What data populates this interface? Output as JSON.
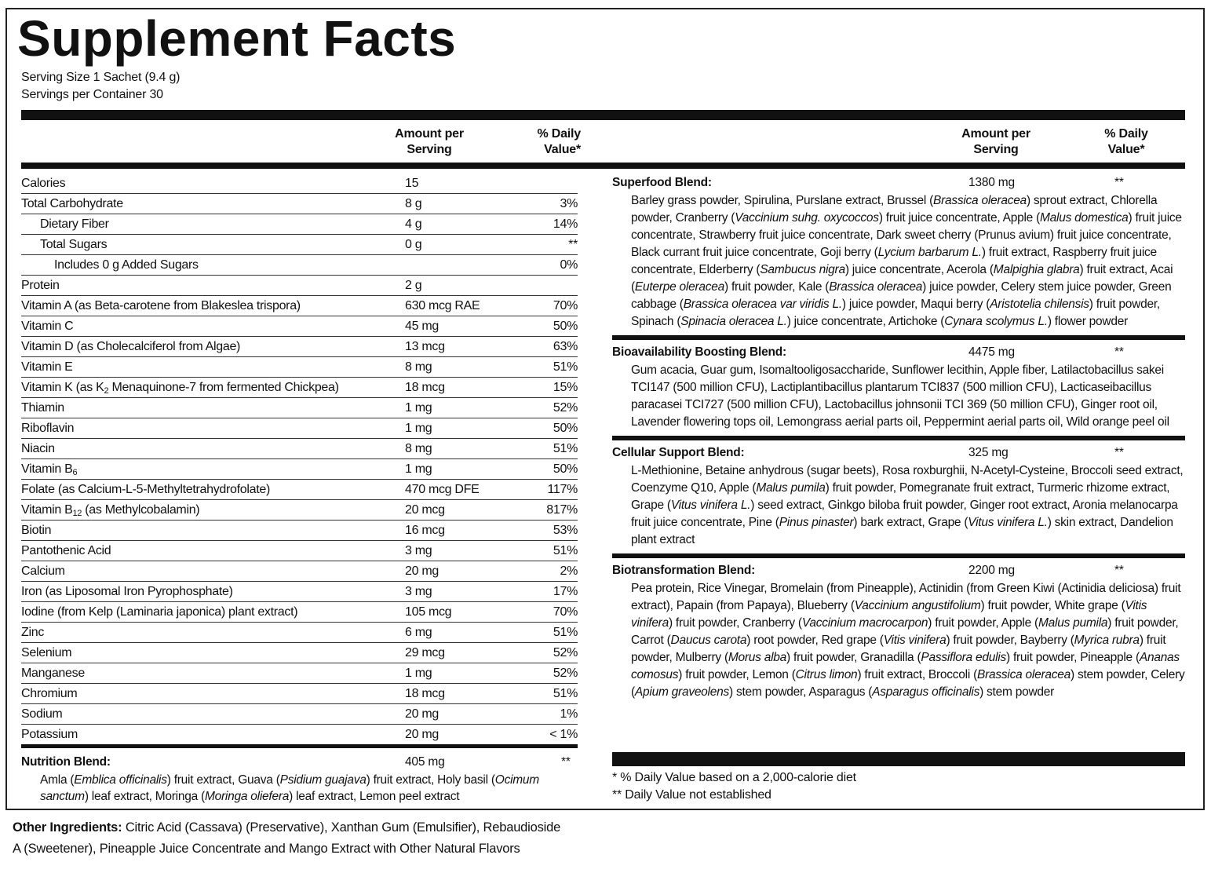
{
  "title": "Supplement Facts",
  "serving_size": "Serving Size 1 Sachet (9.4 g)",
  "servings_per_container": "Servings per Container 30",
  "column_headers": {
    "amount": "Amount per Serving",
    "daily_value": "% Daily Value*"
  },
  "nutrients": [
    {
      "name": "Calories",
      "amount": "15",
      "indent": 0
    },
    {
      "name": "Total Carbohydrate",
      "amount": "8 g",
      "dv": "3%",
      "indent": 0
    },
    {
      "name": "Dietary Fiber",
      "amount": "4 g",
      "dv": "14%",
      "indent": 1
    },
    {
      "name": "Total Sugars",
      "amount": "0 g",
      "dv": "**",
      "indent": 1
    },
    {
      "name": "Includes 0 g Added Sugars",
      "dv": "0%",
      "indent": 2
    },
    {
      "name": "Protein",
      "amount": "2 g",
      "indent": 0
    },
    {
      "name": "Vitamin A (as Beta-carotene from Blakeslea trispora)",
      "amount": "630 mcg RAE",
      "dv": "70%",
      "indent": 0
    },
    {
      "name": "Vitamin C",
      "amount": "45 mg",
      "dv": "50%",
      "indent": 0
    },
    {
      "name": "Vitamin D (as Cholecalciferol from Algae)",
      "amount": "13 mcg",
      "dv": "63%",
      "indent": 0
    },
    {
      "name": "Vitamin E",
      "amount": "8 mg",
      "dv": "51%",
      "indent": 0
    },
    {
      "name": [
        "Vitamin K (as K",
        {
          "text": "2",
          "sub": true
        },
        " Menaquinone-7 from fermented Chickpea)"
      ],
      "amount": "18 mcg",
      "dv": "15%",
      "indent": 0
    },
    {
      "name": "Thiamin",
      "amount": "1 mg",
      "dv": "52%",
      "indent": 0
    },
    {
      "name": "Riboflavin",
      "amount": "1 mg",
      "dv": "50%",
      "indent": 0
    },
    {
      "name": "Niacin",
      "amount": "8 mg",
      "dv": "51%",
      "indent": 0
    },
    {
      "name": [
        "Vitamin B",
        {
          "text": "6",
          "sub": true
        }
      ],
      "amount": "1 mg",
      "dv": "50%",
      "indent": 0
    },
    {
      "name": "Folate (as Calcium-L-5-Methyltetrahydrofolate)",
      "amount": "470 mcg DFE",
      "dv": "117%",
      "indent": 0
    },
    {
      "name": [
        "Vitamin B",
        {
          "text": "12",
          "sub": true
        },
        " (as Methylcobalamin)"
      ],
      "amount": "20 mcg",
      "dv": "817%",
      "indent": 0
    },
    {
      "name": "Biotin",
      "amount": "16 mcg",
      "dv": "53%",
      "indent": 0
    },
    {
      "name": "Pantothenic Acid",
      "amount": "3 mg",
      "dv": "51%",
      "indent": 0
    },
    {
      "name": "Calcium",
      "amount": "20 mg",
      "dv": "2%",
      "indent": 0
    },
    {
      "name": "Iron (as Liposomal Iron Pyrophosphate)",
      "amount": "3 mg",
      "dv": "17%",
      "indent": 0
    },
    {
      "name": "Iodine (from Kelp (Laminaria japonica) plant extract)",
      "amount": "105 mcg",
      "dv": "70%",
      "indent": 0
    },
    {
      "name": "Zinc",
      "amount": "6 mg",
      "dv": "51%",
      "indent": 0
    },
    {
      "name": "Selenium",
      "amount": "29 mcg",
      "dv": "52%",
      "indent": 0
    },
    {
      "name": "Manganese",
      "amount": "1 mg",
      "dv": "52%",
      "indent": 0
    },
    {
      "name": "Chromium",
      "amount": "18 mcg",
      "dv": "51%",
      "indent": 0
    },
    {
      "name": "Sodium",
      "amount": "20 mg",
      "dv": "1%",
      "indent": 0
    },
    {
      "name": "Potassium",
      "amount": "20 mg",
      "dv": "< 1%",
      "indent": 0
    }
  ],
  "nutrition_blend": {
    "name": "Nutrition Blend:",
    "amount": "405 mg",
    "dv": "**",
    "ingredients": [
      "Amla (",
      {
        "text": "Emblica officinalis",
        "italic": true
      },
      ") fruit extract, Guava (",
      {
        "text": "Psidium guajava",
        "italic": true
      },
      ") fruit extract, Holy basil (",
      {
        "text": "Ocimum sanctum",
        "italic": true
      },
      ") leaf extract, Moringa (",
      {
        "text": "Moringa oliefera",
        "italic": true
      },
      ") leaf extract, Lemon peel extract"
    ]
  },
  "blends": [
    {
      "name": "Superfood Blend:",
      "amount": "1380 mg",
      "dv": "**",
      "ingredients": [
        "Barley grass powder, Spirulina, Purslane extract, Brussel (",
        {
          "text": "Brassica oleracea",
          "italic": true
        },
        ") sprout extract, Chlorella powder, Cranberry (",
        {
          "text": "Vaccinium suhg. oxycoccos",
          "italic": true
        },
        ") fruit juice concentrate, Apple (",
        {
          "text": "Malus domestica",
          "italic": true
        },
        ") fruit juice concentrate, Strawberry fruit juice concentrate, Dark sweet cherry (Prunus avium) fruit juice concentrate, Black currant fruit juice concentrate, Goji berry (",
        {
          "text": "Lycium barbarum L.",
          "italic": true
        },
        ") fruit extract, Raspberry fruit juice concentrate, Elderberry (",
        {
          "text": "Sambucus nigra",
          "italic": true
        },
        ") juice concentrate, Acerola (",
        {
          "text": "Malpighia glabra",
          "italic": true
        },
        ") fruit extract, Acai (",
        {
          "text": "Euterpe oleracea",
          "italic": true
        },
        ") fruit powder, Kale (",
        {
          "text": "Brassica oleracea",
          "italic": true
        },
        ") juice powder, Celery stem juice powder, Green cabbage (",
        {
          "text": "Brassica oleracea var viridis L.",
          "italic": true
        },
        ") juice powder, Maqui berry (",
        {
          "text": "Aristotelia chilensis",
          "italic": true
        },
        ") fruit powder, Spinach (",
        {
          "text": "Spinacia oleracea L.",
          "italic": true
        },
        ") juice concentrate, Artichoke (",
        {
          "text": "Cynara scolymus L.",
          "italic": true
        },
        ") flower powder"
      ]
    },
    {
      "name": "Bioavailability Boosting Blend:",
      "amount": "4475 mg",
      "dv": "**",
      "ingredients": [
        "Gum acacia, Guar gum, Isomaltooligosaccharide, Sunflower lecithin, Apple fiber, Latilactobacillus sakei TCI147 (500 million CFU), Lactiplantibacillus plantarum TCI837 (500 million CFU), Lacticaseibacillus paracasei TCI727 (500 million CFU), Lactobacillus johnsonii TCI 369 (50 million CFU), Ginger root oil, Lavender flowering tops oil, Lemongrass aerial parts oil, Peppermint aerial parts oil, Wild orange peel oil"
      ]
    },
    {
      "name": "Cellular Support Blend:",
      "amount": "325 mg",
      "dv": "**",
      "ingredients": [
        "L-Methionine, Betaine anhydrous (sugar beets), Rosa roxburghii, N-Acetyl-Cysteine, Broccoli seed extract, Coenzyme Q10, Apple (",
        {
          "text": "Malus pumila",
          "italic": true
        },
        ") fruit powder, Pomegranate fruit extract, Turmeric rhizome extract, Grape (",
        {
          "text": "Vitus vinifera L.",
          "italic": true
        },
        ") seed extract, Ginkgo biloba fruit powder, Ginger root extract, Aronia melanocarpa fruit juice concentrate, Pine (",
        {
          "text": "Pinus pinaster",
          "italic": true
        },
        ") bark extract, Grape (",
        {
          "text": "Vitus vinifera L.",
          "italic": true
        },
        ") skin extract, Dandelion plant extract"
      ]
    },
    {
      "name": "Biotransformation Blend:",
      "amount": "2200 mg",
      "dv": "**",
      "ingredients": [
        "Pea protein, Rice Vinegar, Bromelain (from Pineapple), Actinidin (from Green Kiwi (Actinidia deliciosa) fruit extract), Papain (from Papaya), Blueberry (",
        {
          "text": "Vaccinium angustifolium",
          "italic": true
        },
        ") fruit powder, White grape (",
        {
          "text": "Vitis vinifera",
          "italic": true
        },
        ") fruit powder, Cranberry (",
        {
          "text": "Vaccinium macrocarpon",
          "italic": true
        },
        ") fruit powder, Apple (",
        {
          "text": "Malus pumila",
          "italic": true
        },
        ") fruit powder, Carrot (",
        {
          "text": "Daucus carota",
          "italic": true
        },
        ") root powder, Red grape (",
        {
          "text": "Vitis vinifera",
          "italic": true
        },
        ") fruit powder, Bayberry (",
        {
          "text": "Myrica rubra",
          "italic": true
        },
        ") fruit powder, Mulberry (",
        {
          "text": "Morus alba",
          "italic": true
        },
        ") fruit powder, Granadilla (",
        {
          "text": "Passiflora edulis",
          "italic": true
        },
        ") fruit powder, Pineapple (",
        {
          "text": "Ananas comosus",
          "italic": true
        },
        ") fruit powder, Lemon (",
        {
          "text": "Citrus limon",
          "italic": true
        },
        ") fruit extract, Broccoli (",
        {
          "text": "Brassica oleracea",
          "italic": true
        },
        ") stem powder, Celery (",
        {
          "text": "Apium graveolens",
          "italic": true
        },
        ") stem powder, Asparagus (",
        {
          "text": "Asparagus officinalis",
          "italic": true
        },
        ") stem powder"
      ]
    }
  ],
  "footnotes": [
    "* % Daily Value based on a 2,000-calorie diet",
    "** Daily Value not established"
  ],
  "other_ingredients": {
    "label": "Other Ingredients:",
    "text": "Citric Acid (Cassava) (Preservative), Xanthan Gum (Emulsifier), Rebaudioside A (Sweetener), Pineapple Juice Concentrate and Mango Extract with Other Natural Flavors"
  }
}
